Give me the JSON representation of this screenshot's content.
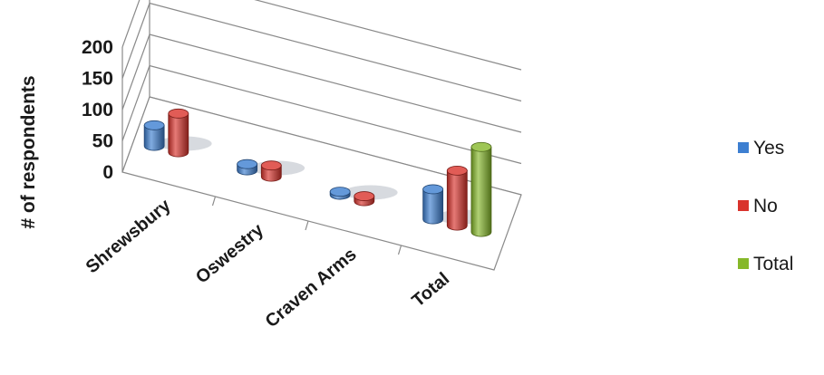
{
  "chart_data": {
    "type": "bar",
    "style": "3d-cylinder",
    "categories": [
      "Shrewsbury",
      "Oswestry",
      "Craven Arms",
      "Total"
    ],
    "series": [
      {
        "name": "Yes",
        "color": "#3d7fd1",
        "values": [
          33,
          10,
          5,
          48
        ]
      },
      {
        "name": "No",
        "color": "#d9332c",
        "values": [
          62,
          18,
          8,
          88
        ]
      },
      {
        "name": "Total",
        "color": "#86b82a",
        "values": [
          null,
          null,
          null,
          136
        ]
      }
    ],
    "ylabel": "# of respondents",
    "ylim": [
      0,
      200
    ],
    "yticks": [
      0,
      50,
      100,
      150,
      200
    ],
    "grid": true,
    "legend_position": "right"
  }
}
